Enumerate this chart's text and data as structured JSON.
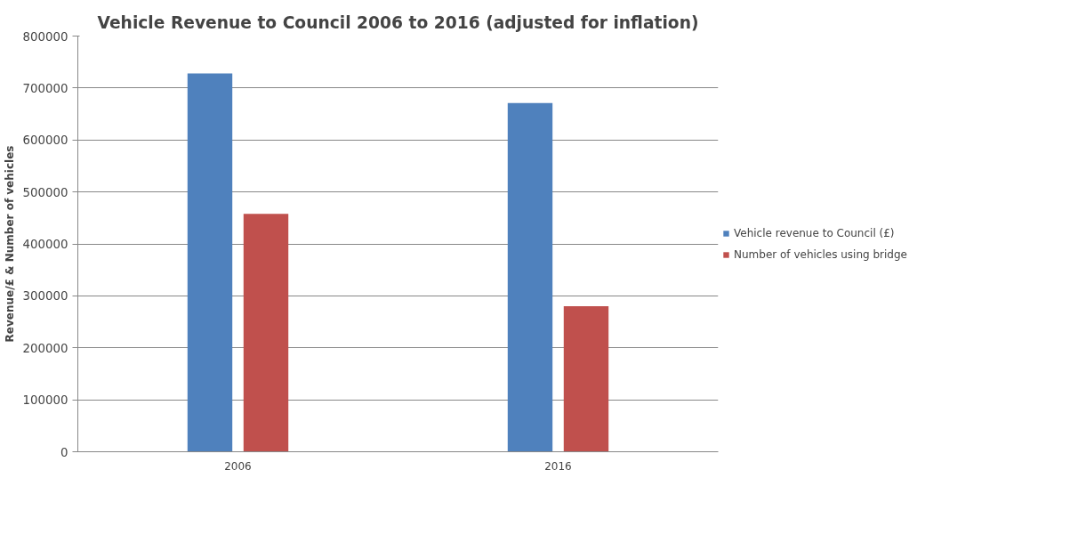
{
  "chart_data": {
    "type": "bar",
    "title": "Vehicle Revenue to Council 2006 to 2016 (adjusted for inflation)",
    "ylabel": "Revenue/£ & Number of vehicles",
    "categories": [
      "2006",
      "2016"
    ],
    "series": [
      {
        "name": "Vehicle revenue to Council (£)",
        "color": "#4f81bd",
        "values": [
          728000,
          671000
        ]
      },
      {
        "name": "Number of vehicles using bridge",
        "color": "#c0504d",
        "values": [
          458000,
          280000
        ]
      }
    ],
    "ylim": [
      0,
      800000
    ],
    "yticks": [
      0,
      100000,
      200000,
      300000,
      400000,
      500000,
      600000,
      700000,
      800000
    ],
    "grid": "y",
    "legend": "right"
  }
}
